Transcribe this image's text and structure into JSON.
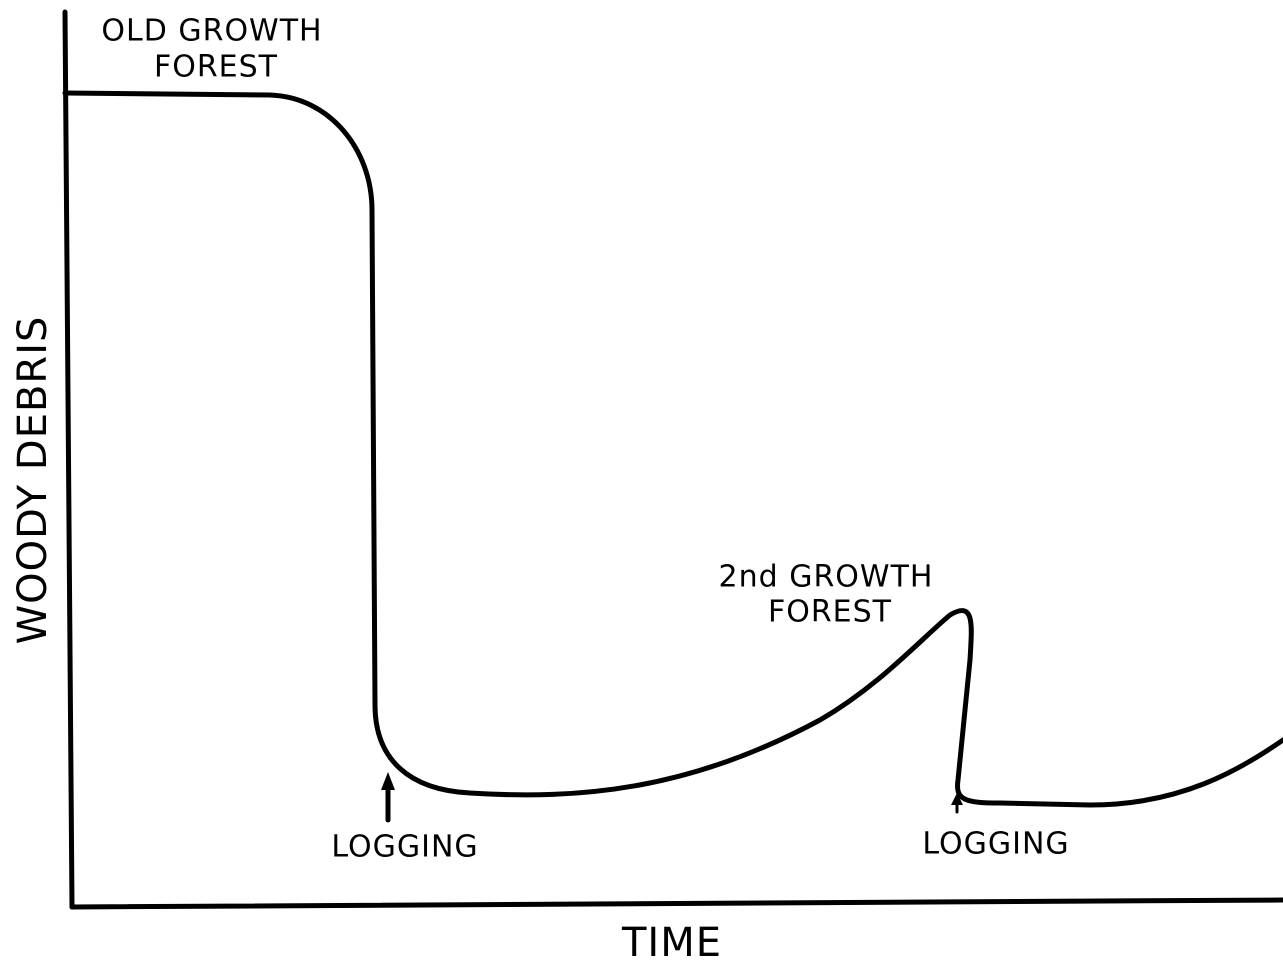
{
  "axes": {
    "x_label": "TIME",
    "y_label": "WOODY DEBRIS"
  },
  "annotations": {
    "old_growth": [
      "OLD GROWTH",
      "FOREST"
    ],
    "second_growth": [
      "2nd GROWTH",
      "FOREST"
    ],
    "logging": [
      "LOGGING",
      "LOGGING"
    ]
  }
}
